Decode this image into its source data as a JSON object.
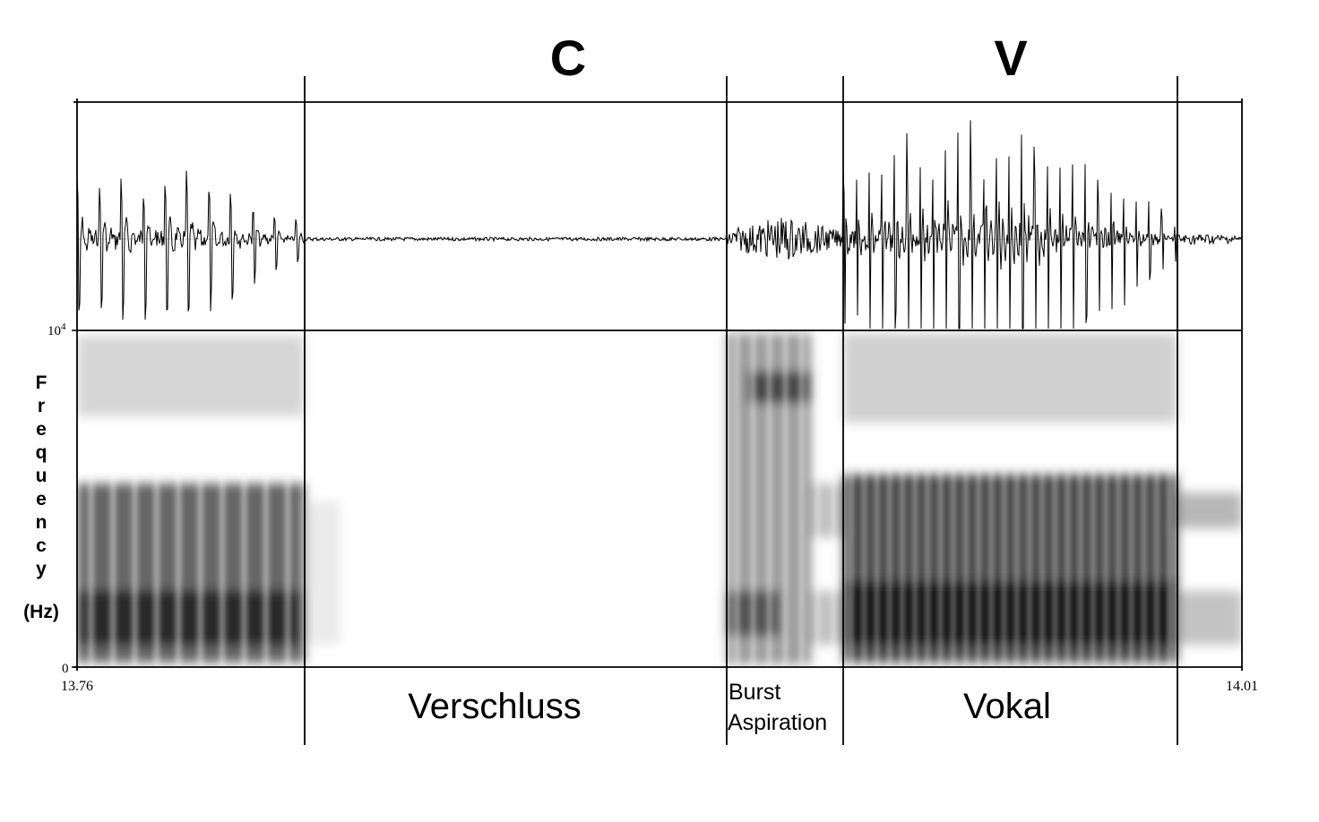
{
  "figure": {
    "segment_headers": {
      "consonant": "C",
      "vowel": "V"
    },
    "y_axis": {
      "title_letters": [
        "F",
        "r",
        "e",
        "q",
        "u",
        "e",
        "n",
        "c",
        "y"
      ],
      "unit": "(Hz)",
      "max_base": "10",
      "max_exp": "4",
      "min": "0"
    },
    "x_axis": {
      "start": "13.76",
      "end": "14.01"
    },
    "segments": [
      {
        "label": "Verschluss"
      },
      {
        "label_line1": "Burst",
        "label_line2": "Aspiration"
      },
      {
        "label": "Vokal"
      }
    ]
  },
  "colors": {
    "ink": "#000000",
    "background": "#ffffff"
  }
}
